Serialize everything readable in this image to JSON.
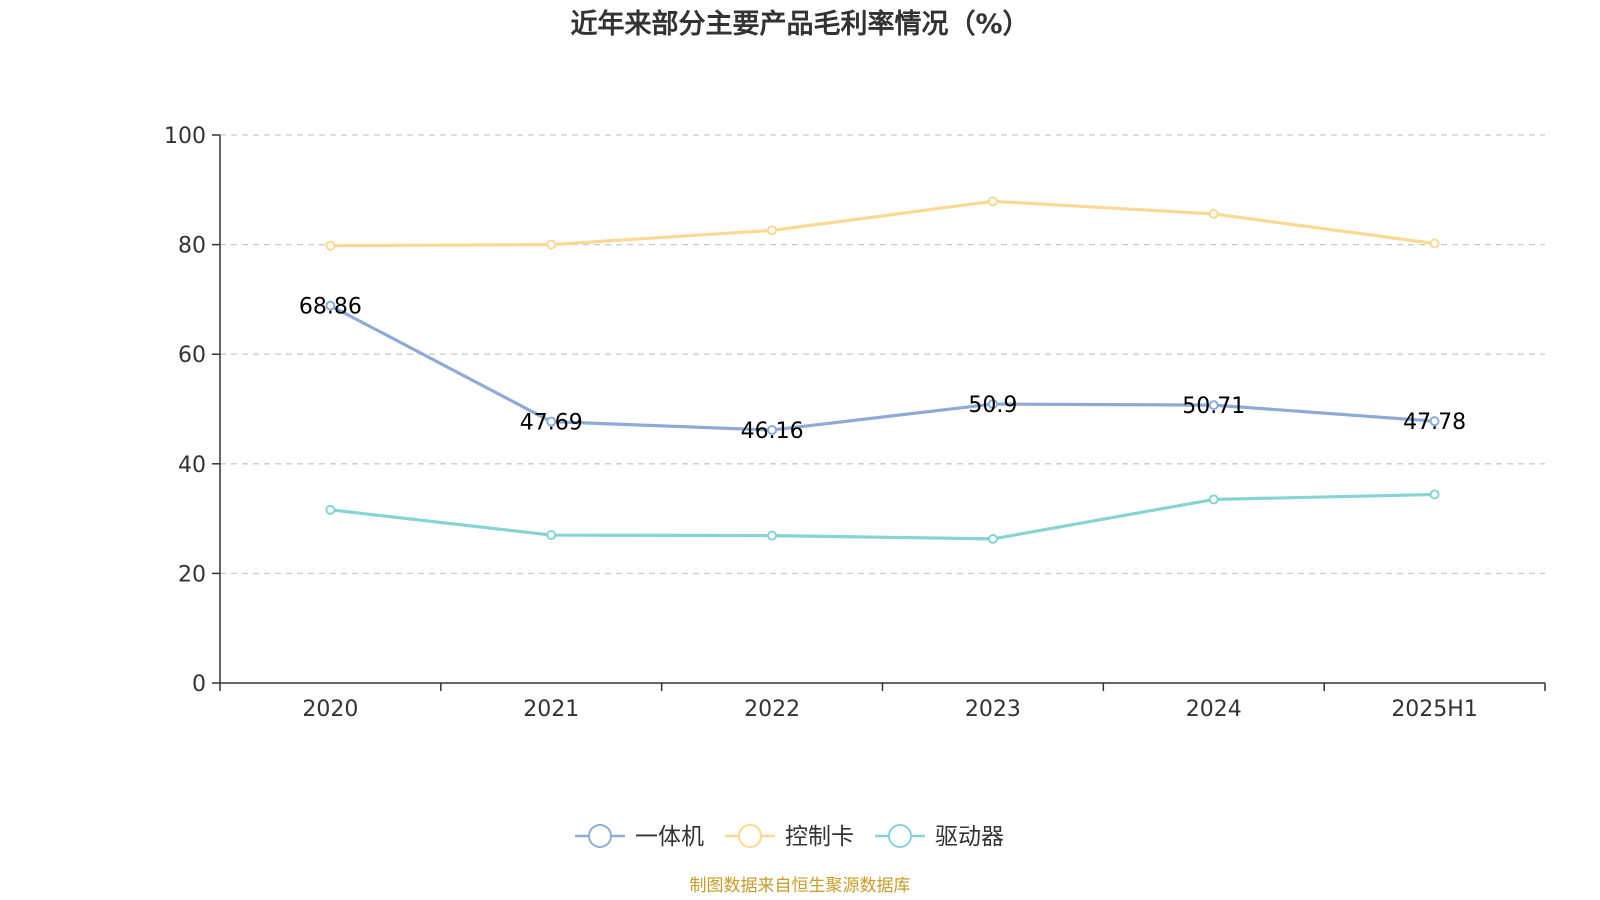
{
  "chart_data": {
    "type": "line",
    "title": "近年来部分主要产品毛利率情况（%）",
    "xlabel": "",
    "ylabel": "",
    "categories": [
      "2020",
      "2021",
      "2022",
      "2023",
      "2024",
      "2025H1"
    ],
    "ylim": [
      0,
      100
    ],
    "yticks": [
      0,
      20,
      40,
      60,
      80,
      100
    ],
    "grid": true,
    "legend_position": "bottom",
    "series": [
      {
        "name": "一体机",
        "color": "#8eabd8",
        "values": [
          68.86,
          47.69,
          46.16,
          50.9,
          50.71,
          47.78
        ],
        "labels": [
          "68.86",
          "47.69",
          "46.16",
          "50.9",
          "50.71",
          "47.78"
        ]
      },
      {
        "name": "控制卡",
        "color": "#fbd992",
        "values": [
          79.8,
          80.0,
          82.6,
          87.9,
          85.6,
          80.2
        ],
        "labels": []
      },
      {
        "name": "驱动器",
        "color": "#86d4d4",
        "values": [
          31.6,
          27.0,
          26.9,
          26.3,
          33.5,
          34.4
        ],
        "labels": []
      }
    ],
    "source": "制图数据来自恒生聚源数据库"
  }
}
